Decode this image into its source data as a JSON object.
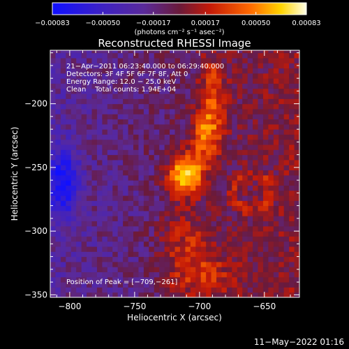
{
  "chart_data": {
    "type": "heatmap",
    "title": "Reconstructed RHESSI Image",
    "xlabel": "Heliocentric X (arcsec)",
    "ylabel": "Heliocentric Y (arcsec)",
    "xlim": [
      -815,
      -623
    ],
    "ylim": [
      -352,
      -158
    ],
    "x_ticks": [
      -800,
      -750,
      -700,
      -650
    ],
    "x_tick_labels": [
      "−800",
      "−750",
      "−700",
      "−650"
    ],
    "y_ticks": [
      -350,
      -300,
      -250,
      -200
    ],
    "y_tick_labels": [
      "−350",
      "−300",
      "−250",
      "−200"
    ],
    "colorbar": {
      "range": [
        -0.00083,
        0.00083
      ],
      "ticks": [
        -0.00083,
        -0.0005,
        -0.00017,
        0.00017,
        0.0005,
        0.00083
      ],
      "tick_labels": [
        "−0.00083",
        "−0.00050",
        "−0.00017",
        "0.00017",
        "0.00050",
        "0.00083"
      ],
      "units_label": "(photons cm⁻² s⁻¹ asec⁻²)",
      "colormap": "blue-purple-red-yellow-white"
    },
    "info_lines": [
      "21−Apr−2011 06:23:40.000 to 06:29:40.000",
      "Detectors: 3F 4F 5F 6F 7F 8F, Att 0",
      "Energy Range: 12.0 − 25.0 keV",
      "Clean    Total counts: 1.94E+04"
    ],
    "peak": {
      "x": -709,
      "y": -261
    },
    "peak_label": "Position of Peak = [−709,−261]",
    "features": [
      {
        "name": "bright-core",
        "x": -711,
        "y": -255,
        "value": 0.00083
      },
      {
        "name": "upper-filament",
        "x": -695,
        "y": -225,
        "value": 0.0005
      },
      {
        "name": "top-filament",
        "x": -690,
        "y": -190,
        "value": 0.00035
      },
      {
        "name": "lower-lane",
        "x": -712,
        "y": -305,
        "value": 0.00025
      },
      {
        "name": "bottom-lane",
        "x": -700,
        "y": -335,
        "value": 0.0003
      },
      {
        "name": "left-blue-patch",
        "x": -805,
        "y": -262,
        "value": -0.0006
      }
    ]
  },
  "footer": {
    "timestamp": "11−May−2022 01:16"
  }
}
